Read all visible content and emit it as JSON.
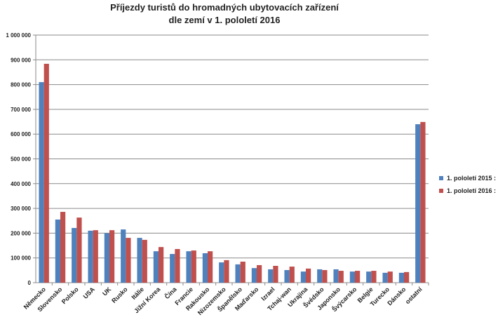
{
  "chart_data": {
    "type": "bar",
    "title": [
      "Příjezdy turistů do hromadných ubytovacích zařízení",
      "dle zemí v 1. pololetí 2016"
    ],
    "xlabel": "",
    "ylabel": "",
    "ylim": [
      0,
      1000000
    ],
    "yticks": [
      0,
      100000,
      200000,
      300000,
      400000,
      500000,
      600000,
      700000,
      800000,
      900000,
      1000000
    ],
    "ytick_labels": [
      "0",
      "100 000",
      "200 000",
      "300 000",
      "400 000",
      "500 000",
      "600 000",
      "700 000",
      "800 000",
      "900 000",
      "1 000 000"
    ],
    "grid": true,
    "legend_position": "right",
    "categories": [
      "Německo",
      "Slovensko",
      "Polsko",
      "USA",
      "UK",
      "Rusko",
      "Itálie",
      "Jižní Korea",
      "Čína",
      "Francie",
      "Rakousko",
      "Nizozemsko",
      "Španělsko",
      "Maďarsko",
      "Izrael",
      "Tchaj-wan",
      "Ukrajina",
      "Švédsko",
      "Japonsko",
      "Švýcarsko",
      "Belgie",
      "Turecko",
      "Dánsko",
      "ostatní"
    ],
    "series": [
      {
        "name": "1. pololetí 2015 :",
        "color": "#4f81bd",
        "values": [
          810000,
          255000,
          221000,
          210000,
          200000,
          215000,
          181000,
          127000,
          116000,
          127000,
          119000,
          82000,
          74000,
          59000,
          54000,
          51000,
          45000,
          54000,
          54000,
          45000,
          45000,
          40000,
          40000,
          640000
        ]
      },
      {
        "name": "1. pololetí 2016 :",
        "color": "#c0504d",
        "values": [
          884000,
          286000,
          263000,
          212000,
          212000,
          181000,
          173000,
          144000,
          136000,
          130000,
          127000,
          91000,
          85000,
          71000,
          68000,
          65000,
          57000,
          51000,
          48000,
          48000,
          48000,
          45000,
          43000,
          649000
        ]
      }
    ]
  }
}
